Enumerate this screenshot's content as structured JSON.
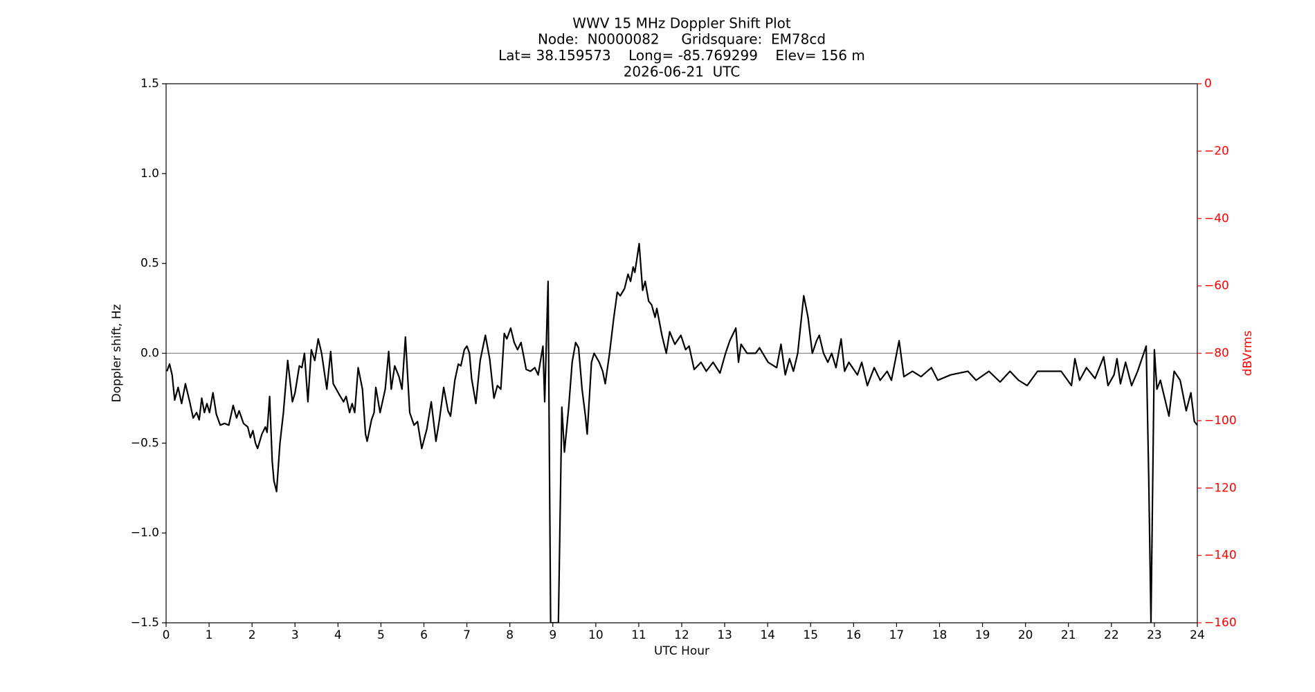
{
  "chart_data": {
    "type": "line",
    "title": "WWV 15 MHz Doppler Shift Plot",
    "subtitle": [
      "Node:  N0000082     Gridsquare:  EM78cd",
      "Lat= 38.159573    Long= -85.769299    Elev= 156 m",
      "2026-06-21  UTC"
    ],
    "xlabel": "UTC Hour",
    "ylabel": "Doppler shift, Hz",
    "y2label": "dBVrms",
    "color": "#000000",
    "y2color": "#ff0000",
    "xlim": [
      0,
      24
    ],
    "xticks": [
      0,
      1,
      2,
      3,
      4,
      5,
      6,
      7,
      8,
      9,
      10,
      11,
      12,
      13,
      14,
      15,
      16,
      17,
      18,
      19,
      20,
      21,
      22,
      23,
      24
    ],
    "ylim": [
      -1.5,
      1.5
    ],
    "yticks": [
      {
        "value": -1.5,
        "label": "−1.5"
      },
      {
        "value": -1.0,
        "label": "−1.0"
      },
      {
        "value": -0.5,
        "label": "−0.5"
      },
      {
        "value": 0,
        "label": "0.0"
      },
      0.5,
      {
        "value": 1.0,
        "label": "1.0"
      },
      1.5
    ],
    "y2lim": [
      -160,
      0
    ],
    "y2ticks": [
      {
        "value": -160,
        "label": "−160"
      },
      {
        "value": -140,
        "label": "−140"
      },
      {
        "value": -120,
        "label": "−120"
      },
      {
        "value": -100,
        "label": "−100"
      },
      {
        "value": -80,
        "label": "−80"
      },
      {
        "value": -60,
        "label": "−60"
      },
      {
        "value": -40,
        "label": "−40"
      },
      {
        "value": -20,
        "label": "−20"
      },
      0
    ],
    "x": [
      0.02,
      0.08,
      0.14,
      0.2,
      0.28,
      0.36,
      0.45,
      0.55,
      0.63,
      0.71,
      0.77,
      0.83,
      0.89,
      0.95,
      1.01,
      1.09,
      1.17,
      1.26,
      1.36,
      1.46,
      1.56,
      1.64,
      1.7,
      1.8,
      1.9,
      1.96,
      2.02,
      2.08,
      2.13,
      2.23,
      2.31,
      2.35,
      2.41,
      2.47,
      2.51,
      2.57,
      2.65,
      2.73,
      2.83,
      2.94,
      3.0,
      3.1,
      3.16,
      3.22,
      3.3,
      3.38,
      3.46,
      3.54,
      3.62,
      3.74,
      3.83,
      3.89,
      4.03,
      4.13,
      4.19,
      4.27,
      4.33,
      4.39,
      4.47,
      4.57,
      4.64,
      4.68,
      4.78,
      4.84,
      4.88,
      4.98,
      5.1,
      5.18,
      5.24,
      5.32,
      5.42,
      5.49,
      5.57,
      5.67,
      5.77,
      5.85,
      5.95,
      6.07,
      6.17,
      6.28,
      6.36,
      6.46,
      6.56,
      6.62,
      6.72,
      6.8,
      6.86,
      6.94,
      7.0,
      7.06,
      7.11,
      7.21,
      7.31,
      7.43,
      7.53,
      7.63,
      7.71,
      7.79,
      7.87,
      7.93,
      8.02,
      8.1,
      8.18,
      8.26,
      8.38,
      8.48,
      8.58,
      8.66,
      8.77,
      8.81,
      8.89,
      8.95,
      9.13,
      9.21,
      9.27,
      9.37,
      9.45,
      9.53,
      9.6,
      9.68,
      9.76,
      9.8,
      9.9,
      9.96,
      10.08,
      10.16,
      10.22,
      10.32,
      10.42,
      10.5,
      10.57,
      10.67,
      10.75,
      10.81,
      10.87,
      10.91,
      11.01,
      11.09,
      11.15,
      11.23,
      11.3,
      11.38,
      11.42,
      11.54,
      11.64,
      11.72,
      11.84,
      11.98,
      12.09,
      12.17,
      12.29,
      12.45,
      12.57,
      12.73,
      12.89,
      13.02,
      13.12,
      13.26,
      13.32,
      13.38,
      13.52,
      13.72,
      13.81,
      14.01,
      14.21,
      14.31,
      14.41,
      14.51,
      14.6,
      14.7,
      14.84,
      14.94,
      15.04,
      15.14,
      15.2,
      15.3,
      15.4,
      15.49,
      15.59,
      15.71,
      15.79,
      15.89,
      16.09,
      16.19,
      16.32,
      16.48,
      16.62,
      16.78,
      16.88,
      17.06,
      17.17,
      17.37,
      17.57,
      17.81,
      17.96,
      18.26,
      18.66,
      18.85,
      19.15,
      19.41,
      19.64,
      19.84,
      20.04,
      20.28,
      20.83,
      21.07,
      21.15,
      21.26,
      21.42,
      21.62,
      21.82,
      21.92,
      22.06,
      22.13,
      22.21,
      22.33,
      22.47,
      22.61,
      22.81,
      22.87,
      22.92,
      23.0,
      23.06,
      23.14,
      23.24,
      23.34,
      23.46,
      23.6,
      23.74,
      23.85,
      23.93,
      24.0
    ],
    "values": [
      -0.1,
      -0.06,
      -0.12,
      -0.26,
      -0.19,
      -0.28,
      -0.17,
      -0.27,
      -0.36,
      -0.33,
      -0.37,
      -0.25,
      -0.33,
      -0.28,
      -0.33,
      -0.22,
      -0.34,
      -0.4,
      -0.39,
      -0.4,
      -0.29,
      -0.36,
      -0.32,
      -0.39,
      -0.41,
      -0.47,
      -0.43,
      -0.5,
      -0.53,
      -0.45,
      -0.41,
      -0.44,
      -0.24,
      -0.6,
      -0.71,
      -0.77,
      -0.5,
      -0.33,
      -0.04,
      -0.27,
      -0.22,
      -0.07,
      -0.08,
      0.0,
      -0.27,
      0.02,
      -0.04,
      0.08,
      0.0,
      -0.2,
      0.01,
      -0.17,
      -0.23,
      -0.27,
      -0.24,
      -0.33,
      -0.28,
      -0.33,
      -0.08,
      -0.2,
      -0.45,
      -0.49,
      -0.37,
      -0.33,
      -0.19,
      -0.33,
      -0.2,
      0.01,
      -0.2,
      -0.07,
      -0.13,
      -0.2,
      0.09,
      -0.33,
      -0.4,
      -0.38,
      -0.53,
      -0.42,
      -0.27,
      -0.49,
      -0.37,
      -0.19,
      -0.32,
      -0.35,
      -0.15,
      -0.06,
      -0.07,
      0.02,
      0.04,
      0.0,
      -0.14,
      -0.28,
      -0.04,
      0.1,
      -0.03,
      -0.25,
      -0.18,
      -0.2,
      0.11,
      0.08,
      0.14,
      0.06,
      0.02,
      0.06,
      -0.09,
      -0.1,
      -0.08,
      -0.12,
      0.04,
      -0.27,
      0.4,
      -1.5,
      -1.5,
      -0.3,
      -0.55,
      -0.3,
      -0.05,
      0.06,
      0.03,
      -0.2,
      -0.35,
      -0.45,
      -0.05,
      0.0,
      -0.05,
      -0.1,
      -0.17,
      0.0,
      0.2,
      0.34,
      0.32,
      0.36,
      0.44,
      0.4,
      0.48,
      0.45,
      0.61,
      0.35,
      0.4,
      0.29,
      0.27,
      0.2,
      0.25,
      0.1,
      0.0,
      0.12,
      0.05,
      0.1,
      0.02,
      0.04,
      -0.09,
      -0.05,
      -0.1,
      -0.05,
      -0.11,
      0.0,
      0.07,
      0.14,
      -0.05,
      0.05,
      0.0,
      0.0,
      0.03,
      -0.05,
      -0.08,
      0.05,
      -0.12,
      -0.03,
      -0.1,
      0.0,
      0.32,
      0.2,
      0.0,
      0.07,
      0.1,
      0.0,
      -0.05,
      0.0,
      -0.08,
      0.08,
      -0.1,
      -0.05,
      -0.12,
      -0.05,
      -0.18,
      -0.08,
      -0.15,
      -0.1,
      -0.15,
      0.07,
      -0.13,
      -0.1,
      -0.13,
      -0.08,
      -0.15,
      -0.12,
      -0.1,
      -0.15,
      -0.1,
      -0.16,
      -0.1,
      -0.15,
      -0.18,
      -0.1,
      -0.1,
      -0.18,
      -0.03,
      -0.15,
      -0.08,
      -0.14,
      -0.02,
      -0.18,
      -0.12,
      -0.03,
      -0.17,
      -0.05,
      -0.18,
      -0.1,
      0.04,
      -0.7,
      -1.5,
      0.02,
      -0.2,
      -0.15,
      -0.25,
      -0.35,
      -0.1,
      -0.15,
      -0.32,
      -0.22,
      -0.38,
      -0.4
    ]
  }
}
